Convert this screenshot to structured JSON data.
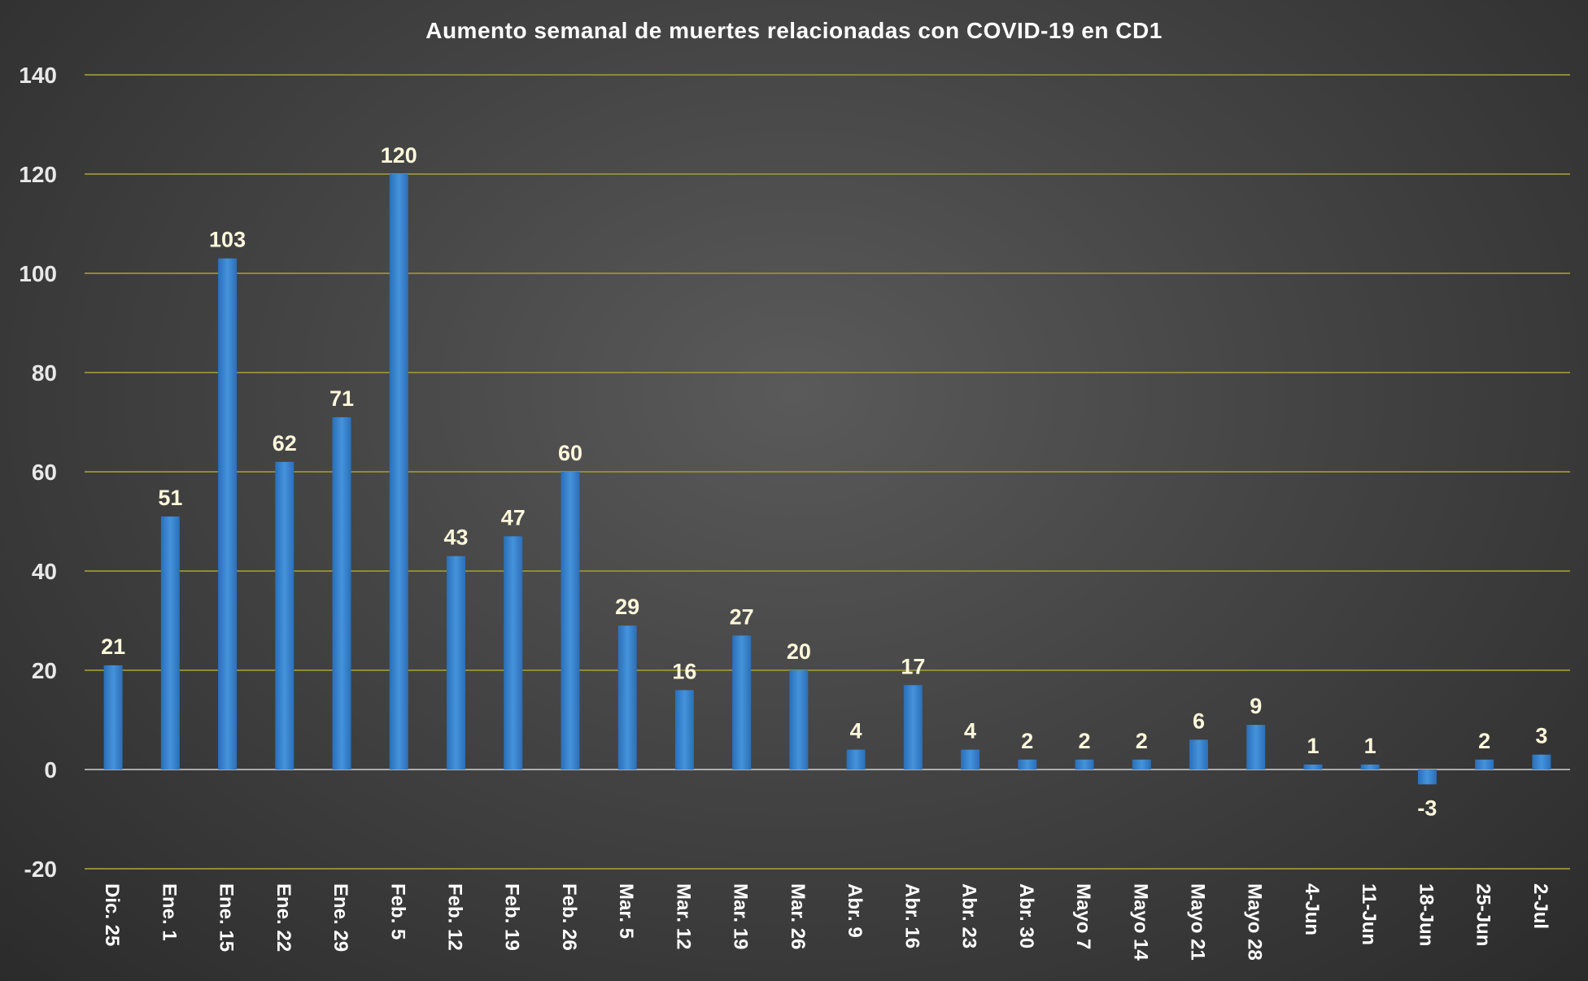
{
  "chart_data": {
    "type": "bar",
    "title": "Aumento semanal de muertes relacionadas con COVID-19 en CD1",
    "xlabel": "",
    "ylabel": "",
    "ylim": [
      -20,
      140
    ],
    "yticks": [
      -20,
      0,
      20,
      40,
      60,
      80,
      100,
      120,
      140
    ],
    "grid": true,
    "legend": "none",
    "colors": {
      "bar": "#2f78c4",
      "bar_highlight": "#4a93d9",
      "grid": "#8f8a3a",
      "label": "#fff8dc"
    },
    "categories": [
      "Dic. 25",
      "Ene. 1",
      "Ene. 15",
      "Ene. 22",
      "Ene. 29",
      "Feb. 5",
      "Feb. 12",
      "Feb. 19",
      "Feb. 26",
      "Mar. 5",
      "Mar. 12",
      "Mar. 19",
      "Mar. 26",
      "Abr. 9",
      "Abr. 16",
      "Abr. 23",
      "Abr. 30",
      "Mayo 7",
      "Mayo 14",
      "Mayo 21",
      "Mayo 28",
      "4-Jun",
      "11-Jun",
      "18-Jun",
      "25-Jun",
      "2-Jul"
    ],
    "values": [
      21,
      51,
      103,
      62,
      71,
      120,
      43,
      47,
      60,
      29,
      16,
      27,
      20,
      4,
      17,
      4,
      2,
      2,
      2,
      6,
      9,
      1,
      1,
      -3,
      2,
      3
    ]
  }
}
